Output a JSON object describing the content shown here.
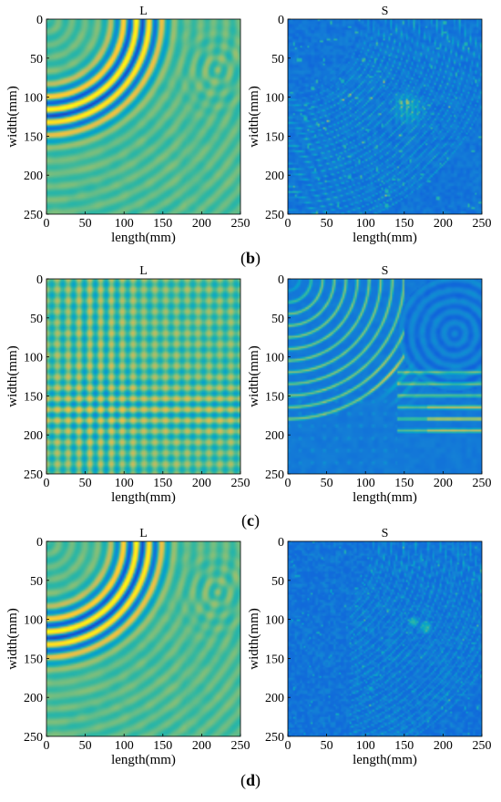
{
  "chart_data": [
    {
      "type": "heatmap",
      "row": "b",
      "title": "L",
      "xlabel": "length(mm)",
      "ylabel": "width(mm)",
      "xlim": [
        0,
        250
      ],
      "ylim": [
        0,
        250
      ],
      "y_direction": "down",
      "xticks": [
        0,
        50,
        100,
        150,
        200,
        250
      ],
      "yticks": [
        0,
        50,
        100,
        150,
        200,
        250
      ],
      "colormap": "parula",
      "pattern": "quarter-circle-wavefronts-with-reflection"
    },
    {
      "type": "heatmap",
      "row": "b",
      "title": "S",
      "xlabel": "length(mm)",
      "ylabel": "width(mm)",
      "xlim": [
        0,
        250
      ],
      "ylim": [
        0,
        250
      ],
      "y_direction": "down",
      "xticks": [
        0,
        50,
        100,
        150,
        200,
        250
      ],
      "yticks": [
        0,
        50,
        100,
        150,
        200,
        250
      ],
      "colormap": "parula",
      "pattern": "sparse-arc-streaks"
    },
    {
      "type": "heatmap",
      "row": "c",
      "title": "L",
      "xlabel": "length(mm)",
      "ylabel": "width(mm)",
      "xlim": [
        0,
        250
      ],
      "ylim": [
        0,
        250
      ],
      "y_direction": "down",
      "xticks": [
        0,
        50,
        100,
        150,
        200,
        250
      ],
      "yticks": [
        0,
        50,
        100,
        150,
        200,
        250
      ],
      "colormap": "parula",
      "pattern": "grid-stripes"
    },
    {
      "type": "heatmap",
      "row": "c",
      "title": "S",
      "xlabel": "length(mm)",
      "ylabel": "width(mm)",
      "xlim": [
        0,
        250
      ],
      "ylim": [
        0,
        250
      ],
      "y_direction": "down",
      "xticks": [
        0,
        50,
        100,
        150,
        200,
        250
      ],
      "yticks": [
        0,
        50,
        100,
        150,
        200,
        250
      ],
      "colormap": "parula",
      "pattern": "quarter-circle-wavefronts"
    },
    {
      "type": "heatmap",
      "row": "d",
      "title": "L",
      "xlabel": "length(mm)",
      "ylabel": "width(mm)",
      "xlim": [
        0,
        250
      ],
      "ylim": [
        0,
        250
      ],
      "y_direction": "down",
      "xticks": [
        0,
        50,
        100,
        150,
        200,
        250
      ],
      "yticks": [
        0,
        50,
        100,
        150,
        200,
        250
      ],
      "colormap": "parula",
      "pattern": "quarter-circle-wavefronts-with-reflection"
    },
    {
      "type": "heatmap",
      "row": "d",
      "title": "S",
      "xlabel": "length(mm)",
      "ylabel": "width(mm)",
      "xlim": [
        0,
        250
      ],
      "ylim": [
        0,
        250
      ],
      "y_direction": "down",
      "xticks": [
        0,
        50,
        100,
        150,
        200,
        250
      ],
      "yticks": [
        0,
        50,
        100,
        150,
        200,
        250
      ],
      "colormap": "parula",
      "pattern": "sparse-speckle"
    }
  ],
  "row_labels": {
    "b": {
      "open": "(",
      "letter": "b",
      "close": ")"
    },
    "c": {
      "open": "(",
      "letter": "c",
      "close": ")"
    },
    "d": {
      "open": "(",
      "letter": "d",
      "close": ")"
    }
  },
  "colors": {
    "parula_stops": [
      "#352a87",
      "#0f5cdd",
      "#1481d6",
      "#06a4ca",
      "#2eb7a4",
      "#87bf77",
      "#d1bb59",
      "#fec832",
      "#f9fb0e"
    ]
  }
}
